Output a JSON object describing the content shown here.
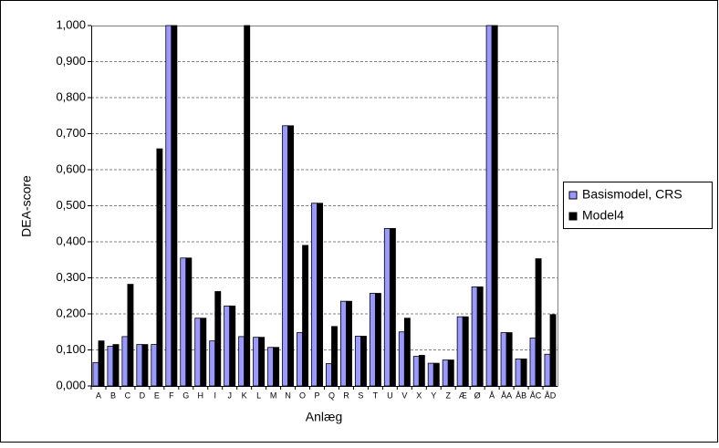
{
  "chart_data": {
    "type": "bar",
    "categories": [
      "A",
      "B",
      "C",
      "D",
      "E",
      "F",
      "G",
      "H",
      "I",
      "J",
      "K",
      "L",
      "M",
      "N",
      "O",
      "P",
      "Q",
      "R",
      "S",
      "T",
      "U",
      "V",
      "X",
      "Y",
      "Z",
      "Æ",
      "Ø",
      "Å",
      "ÅA",
      "ÅB",
      "ÅC",
      "ÅD"
    ],
    "series": [
      {
        "name": "Basismodel, CRS",
        "color": "#9999ff",
        "values": [
          0.065,
          0.11,
          0.137,
          0.115,
          0.115,
          1.0,
          0.355,
          0.188,
          0.125,
          0.222,
          0.137,
          0.135,
          0.107,
          0.722,
          0.148,
          0.507,
          0.062,
          0.235,
          0.138,
          0.257,
          0.437,
          0.15,
          0.082,
          0.063,
          0.072,
          0.192,
          0.275,
          1.0,
          0.148,
          0.075,
          0.133,
          0.088
        ]
      },
      {
        "name": "Model4",
        "color": "#000000",
        "values": [
          0.125,
          0.115,
          0.282,
          0.115,
          0.658,
          1.0,
          0.355,
          0.188,
          0.262,
          0.222,
          1.0,
          0.135,
          0.107,
          0.722,
          0.39,
          0.507,
          0.165,
          0.235,
          0.138,
          0.257,
          0.437,
          0.188,
          0.085,
          0.063,
          0.072,
          0.192,
          0.275,
          1.0,
          0.148,
          0.075,
          0.353,
          0.198
        ]
      }
    ],
    "x_label": "Anlæg",
    "y_label": "DEA-score",
    "ylim": [
      0,
      1
    ],
    "yticks": [
      {
        "value": 0,
        "label": "0,000"
      },
      {
        "value": 0.1,
        "label": "0,100"
      },
      {
        "value": 0.2,
        "label": "0,200"
      },
      {
        "value": 0.3,
        "label": "0,300"
      },
      {
        "value": 0.4,
        "label": "0,400"
      },
      {
        "value": 0.5,
        "label": "0,500"
      },
      {
        "value": 0.6,
        "label": "0,600"
      },
      {
        "value": 0.7,
        "label": "0,700"
      },
      {
        "value": 0.8,
        "label": "0,800"
      },
      {
        "value": 0.9,
        "label": "0,900"
      },
      {
        "value": 1,
        "label": "1,000"
      }
    ],
    "grid": true,
    "legend": "right"
  }
}
